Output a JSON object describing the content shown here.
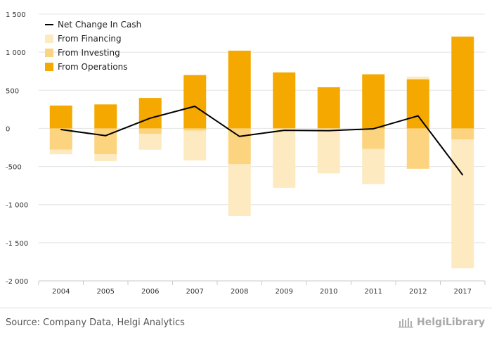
{
  "chart_data": {
    "type": "bar",
    "stacked": true,
    "categories": [
      "2004",
      "2005",
      "2006",
      "2007",
      "2008",
      "2009",
      "2010",
      "2011",
      "2012",
      "2017"
    ],
    "series": [
      {
        "name": "From Operations",
        "kind": "bar",
        "color": "#f5a800",
        "values": [
          300,
          315,
          400,
          700,
          1020,
          735,
          540,
          710,
          645,
          1205
        ]
      },
      {
        "name": "From Investing",
        "kind": "bar",
        "color": "#fcd47f",
        "values": [
          -280,
          -340,
          -70,
          -30,
          -470,
          0,
          0,
          -270,
          -530,
          -145
        ]
      },
      {
        "name": "From Financing",
        "kind": "bar",
        "color": "#feeac0",
        "values": [
          -60,
          -90,
          -210,
          -390,
          -680,
          -780,
          -590,
          -460,
          35,
          -1690
        ]
      },
      {
        "name": "Net Change In Cash",
        "kind": "line",
        "color": "#000000",
        "values": [
          -15,
          -95,
          135,
          290,
          -105,
          -25,
          -30,
          -5,
          165,
          -610
        ]
      }
    ],
    "legend_order": [
      "Net Change In Cash",
      "From Financing",
      "From Investing",
      "From Operations"
    ],
    "yticks": [
      1500,
      1000,
      500,
      0,
      -500,
      -1000,
      -1500,
      -2000
    ],
    "ytick_labels": [
      "1 500",
      "1 000",
      "500",
      "0",
      "-500",
      "-1 000",
      "-1 500",
      "-2 000"
    ],
    "ylim": [
      -2000,
      1500
    ],
    "xlabel": "",
    "ylabel": "",
    "legend_position": "top-left"
  },
  "footer": {
    "source": "Source: Company Data, Helgi Analytics",
    "brand": "HelgiLibrary"
  }
}
